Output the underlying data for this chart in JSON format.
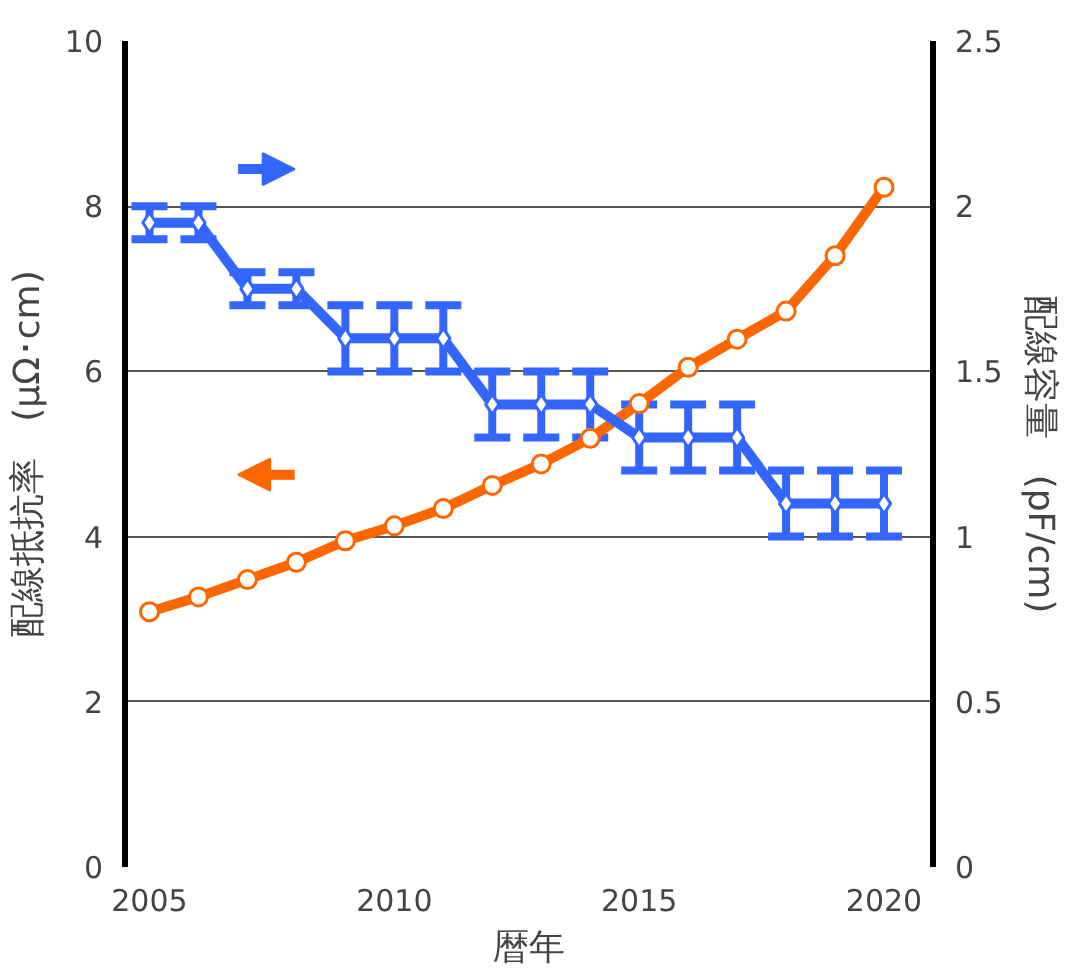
{
  "chart_data": {
    "type": "line",
    "xlabel": "暦年",
    "ylabel": "配線抵抗率　(μΩ･cm)",
    "y2label": "配線容量　(pF/cm)",
    "x": [
      2005,
      2006,
      2007,
      2008,
      2009,
      2010,
      2011,
      2012,
      2013,
      2014,
      2015,
      2016,
      2017,
      2018,
      2019,
      2020
    ],
    "series": [
      {
        "color": "#ff6600",
        "marker": "circle",
        "values": [
          3.09,
          3.27,
          3.48,
          3.69,
          3.95,
          4.13,
          4.34,
          4.62,
          4.88,
          5.19,
          5.61,
          6.05,
          6.39,
          6.73,
          7.4,
          8.23
        ]
      },
      {
        "color": "#3366ff",
        "marker": "diamond",
        "axis": "y2",
        "values": [
          1.95,
          1.95,
          1.75,
          1.75,
          1.6,
          1.6,
          1.6,
          1.4,
          1.4,
          1.4,
          1.3,
          1.3,
          1.3,
          1.1,
          1.1,
          1.1
        ],
        "errors": [
          0.05,
          0.05,
          0.05,
          0.05,
          0.1,
          0.1,
          0.1,
          0.1,
          0.1,
          0.1,
          0.1,
          0.1,
          0.1,
          0.1,
          0.1,
          0.1
        ]
      }
    ],
    "xlim": [
      2004.5,
      2021
    ],
    "xticks": [
      2005,
      2010,
      2015,
      2020
    ],
    "ylim": [
      0,
      10
    ],
    "yticks": [
      0,
      2,
      4,
      6,
      8,
      10
    ],
    "y2lim": [
      0,
      2.5
    ],
    "y2ticks": [
      0,
      0.5,
      1,
      1.5,
      2,
      2.5
    ],
    "grid": "y",
    "line_style": "solid"
  }
}
